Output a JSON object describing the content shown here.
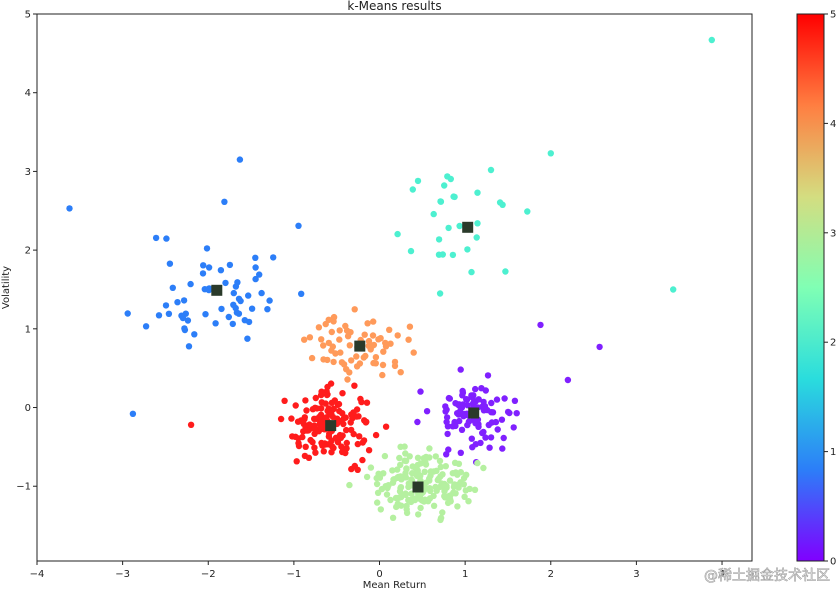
{
  "watermark": "@稀土掘金技术社区",
  "chart_data": {
    "type": "scatter",
    "title": "k-Means results",
    "xlabel": "Mean Return",
    "ylabel": "Volatility",
    "xlim": [
      -4,
      4.35
    ],
    "ylim": [
      -1.95,
      5
    ],
    "xticks": [
      -4,
      -3,
      -2,
      -1,
      0,
      1,
      2,
      3,
      4
    ],
    "yticks": [
      -1,
      0,
      1,
      2,
      3,
      4,
      5
    ],
    "xtick_labels": [
      "−4",
      "−3",
      "−2",
      "−1",
      "0",
      "1",
      "2",
      "3",
      "4"
    ],
    "ytick_labels": [
      "−1",
      "0",
      "1",
      "2",
      "3",
      "4",
      "5"
    ],
    "grid": false,
    "colormap": "rainbow",
    "colorbar": {
      "min": 0,
      "max": 5,
      "ticks": [
        0,
        1,
        2,
        3,
        4,
        5
      ],
      "tick_labels": [
        "0",
        "1",
        "2",
        "3",
        "4",
        "5"
      ],
      "stops": [
        "#8000ff",
        "#2c7ef8",
        "#2adddd",
        "#80ffb4",
        "#d4dd80",
        "#ff7e41",
        "#ff0000"
      ]
    },
    "clusters": [
      {
        "label": 1,
        "color": "#2c7ef8",
        "center": [
          -1.9,
          1.49
        ],
        "n": 60,
        "spread": [
          0.75,
          0.75
        ],
        "seed": 11
      },
      {
        "label": 2,
        "color": "#4df0d0",
        "center": [
          1.03,
          2.29
        ],
        "n": 28,
        "spread": [
          0.55,
          0.6
        ],
        "seed": 23
      },
      {
        "label": 4,
        "color": "#ff9a5a",
        "center": [
          -0.23,
          0.78
        ],
        "n": 70,
        "spread": [
          0.5,
          0.35
        ],
        "seed": 37
      },
      {
        "label": 5,
        "color": "#ff1c1c",
        "center": [
          -0.57,
          -0.23
        ],
        "n": 150,
        "spread": [
          0.45,
          0.4
        ],
        "seed": 41
      },
      {
        "label": 0,
        "color": "#8020ff",
        "center": [
          1.1,
          -0.07
        ],
        "n": 100,
        "spread": [
          0.45,
          0.4
        ],
        "seed": 53
      },
      {
        "label": 3,
        "color": "#b5f0a0",
        "center": [
          0.45,
          -1.01
        ],
        "n": 170,
        "spread": [
          0.5,
          0.35
        ],
        "seed": 67
      }
    ],
    "outliers": [
      {
        "x": 3.88,
        "y": 4.67,
        "color": "#4df0d0"
      },
      {
        "x": 2.0,
        "y": 3.23,
        "color": "#4df0d0"
      },
      {
        "x": 3.43,
        "y": 1.5,
        "color": "#4df0d0"
      },
      {
        "x": -3.62,
        "y": 2.53,
        "color": "#2c7ef8"
      },
      {
        "x": -1.63,
        "y": 3.15,
        "color": "#2c7ef8"
      },
      {
        "x": -2.88,
        "y": -0.08,
        "color": "#2c7ef8"
      },
      {
        "x": 2.57,
        "y": 0.77,
        "color": "#8020ff"
      },
      {
        "x": 1.88,
        "y": 1.05,
        "color": "#8020ff"
      },
      {
        "x": 2.2,
        "y": 0.35,
        "color": "#8020ff"
      },
      {
        "x": -2.2,
        "y": -0.22,
        "color": "#ff1c1c"
      },
      {
        "x": 0.45,
        "y": 2.88,
        "color": "#4df0d0"
      }
    ],
    "centroids": [
      {
        "x": -1.9,
        "y": 1.49
      },
      {
        "x": 1.03,
        "y": 2.29
      },
      {
        "x": -0.23,
        "y": 0.78
      },
      {
        "x": -0.57,
        "y": -0.23
      },
      {
        "x": 1.1,
        "y": -0.07
      },
      {
        "x": 0.45,
        "y": -1.01
      }
    ],
    "centroid_color": "#2a3a2a"
  }
}
